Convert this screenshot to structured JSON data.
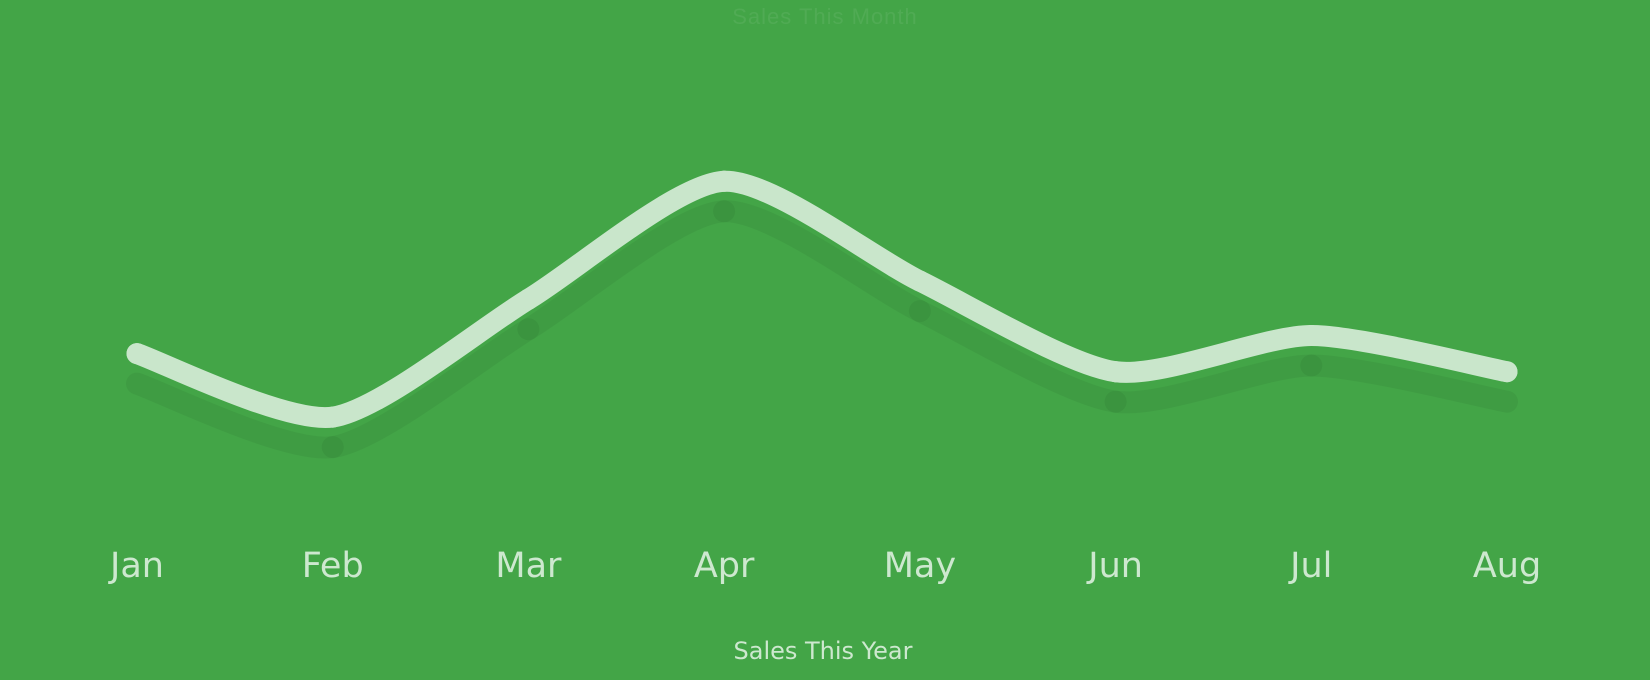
{
  "chart_data": {
    "type": "line",
    "title": "Sales This Month",
    "categories": [
      "Jan",
      "Feb",
      "Mar",
      "Apr",
      "May",
      "Jun",
      "Jul",
      "Aug"
    ],
    "series": [
      {
        "values": [
          7.2,
          5.8,
          8.4,
          11.0,
          8.8,
          6.8,
          7.6,
          6.8
        ]
      }
    ],
    "xlabel": "Sales This Year",
    "ylabel": "",
    "ylim": [
      0,
      15
    ],
    "grid": false,
    "colors": {
      "background": "#43a547",
      "line": "#c9e6cb",
      "label": "#cde8cf"
    }
  }
}
